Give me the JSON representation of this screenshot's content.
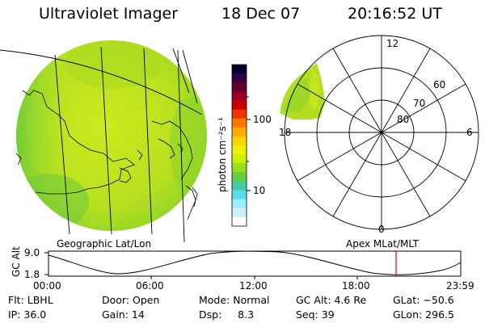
{
  "header": {
    "instrument": "Ultraviolet Imager",
    "date": "18 Dec 07",
    "time": "20:16:52 UT"
  },
  "colorbar": {
    "unit_label": "photon cm⁻²s⁻¹",
    "ticks": [
      "100",
      "10"
    ],
    "colors": [
      "#000033",
      "#330044",
      "#660033",
      "#990022",
      "#cc0000",
      "#ee3300",
      "#ff7700",
      "#ffaa00",
      "#ffd400",
      "#eef000",
      "#ccee00",
      "#99dd22",
      "#66cc44",
      "#44ccaa",
      "#55ddee",
      "#99eeff",
      "#cceeff",
      "#ffffff"
    ]
  },
  "polar": {
    "lat_labels": [
      "60",
      "70",
      "80"
    ],
    "mlt_labels": [
      "12",
      "18",
      "6",
      "0"
    ]
  },
  "panel_labels": {
    "left": "Geographic Lat/Lon",
    "right": "Apex  MLat/MLT"
  },
  "altitude_plot": {
    "axis_title": "GC Alt",
    "y_ticks": [
      "9.0",
      "1.8"
    ],
    "x_ticks": [
      "00:00",
      "06:00",
      "12:00",
      "18:00",
      "23:59"
    ],
    "current_time_color": "#dd0000"
  },
  "info": {
    "row1": {
      "flt": "Flt: LBHL",
      "door": "Door: Open",
      "mode": "Mode: Normal",
      "gcalt": "GC Alt: 4.6 Re",
      "glat": "GLat: −50.6"
    },
    "row2": {
      "ip": "IP: 36.0",
      "gain": "Gain: 14",
      "dsp": "Dsp:     8.3",
      "seq": "Seq: 39",
      "glon": "GLon: 296.5"
    }
  }
}
